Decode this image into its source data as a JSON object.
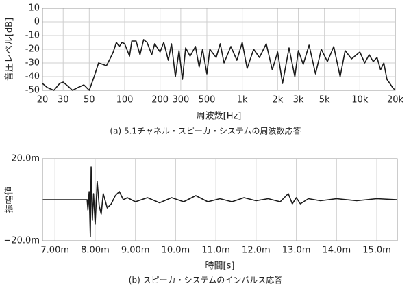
{
  "chart_data": [
    {
      "type": "line",
      "ylabel": "音圧レベル[dB]",
      "xlabel": "周波数[Hz]",
      "caption": "(a) 5.1チャネル・スピーカ・システムの周波数応答",
      "xscale": "log",
      "grid": true,
      "color": "#1a1a1a",
      "xlim": [
        20,
        20000
      ],
      "ylim": [
        -50,
        10
      ],
      "xticks": [
        20,
        30,
        50,
        100,
        200,
        300,
        500,
        {
          "value": 1000,
          "label": "1k"
        },
        {
          "value": 2000,
          "label": "2k"
        },
        {
          "value": 3000,
          "label": "3k"
        },
        {
          "value": 5000,
          "label": "5k"
        },
        {
          "value": 10000,
          "label": "10k"
        },
        {
          "value": 20000,
          "label": "20k"
        }
      ],
      "yticks": [
        10,
        0,
        -10,
        -20,
        -30,
        -40,
        -50
      ],
      "x": [
        20,
        22,
        25,
        28,
        30,
        33,
        36,
        40,
        45,
        50,
        55,
        60,
        65,
        70,
        75,
        80,
        85,
        90,
        95,
        100,
        110,
        115,
        125,
        135,
        145,
        155,
        170,
        180,
        200,
        215,
        235,
        250,
        270,
        290,
        310,
        330,
        360,
        400,
        430,
        460,
        500,
        530,
        600,
        650,
        700,
        800,
        900,
        1000,
        1100,
        1250,
        1400,
        1600,
        1800,
        2000,
        2200,
        2500,
        2800,
        3000,
        3300,
        3700,
        4200,
        4700,
        5300,
        6000,
        6800,
        7500,
        8500,
        10000,
        11000,
        12000,
        13000,
        14000,
        15000,
        16000,
        17000,
        18000,
        19000,
        20000
      ],
      "values": [
        -45,
        -48,
        -50,
        -45,
        -44,
        -47,
        -50,
        -48,
        -46,
        -50,
        -40,
        -30,
        -31,
        -32,
        -27,
        -22,
        -15,
        -18,
        -15,
        -16,
        -25,
        -14,
        -14,
        -24,
        -13,
        -15,
        -24,
        -16,
        -22,
        -15,
        -28,
        -16,
        -40,
        -21,
        -42,
        -19,
        -25,
        -18,
        -33,
        -20,
        -38,
        -20,
        -26,
        -16,
        -30,
        -18,
        -28,
        -15,
        -34,
        -20,
        -26,
        -16,
        -35,
        -22,
        -45,
        -19,
        -40,
        -21,
        -31,
        -17,
        -38,
        -20,
        -29,
        -18,
        -40,
        -21,
        -27,
        -22,
        -30,
        -24,
        -29,
        -26,
        -35,
        -30,
        -42,
        -45,
        -48,
        -50
      ]
    },
    {
      "type": "line",
      "ylabel": "振幅値",
      "xlabel": "時間[s]",
      "caption": "(b) スピーカ・システムのインパルス応答",
      "grid": true,
      "color": "#1a1a1a",
      "xlim": [
        0.00669,
        0.01551
      ],
      "ylim": [
        -0.02,
        0.02
      ],
      "xticks": [
        {
          "value": 0.007,
          "label": "7.00m"
        },
        {
          "value": 0.008,
          "label": "8.00m"
        },
        {
          "value": 0.009,
          "label": "9.00m"
        },
        {
          "value": 0.01,
          "label": "10.0m"
        },
        {
          "value": 0.011,
          "label": "11.0m"
        },
        {
          "value": 0.012,
          "label": "12.0m"
        },
        {
          "value": 0.013,
          "label": "13.0m"
        },
        {
          "value": 0.014,
          "label": "14.0m"
        },
        {
          "value": 0.015,
          "label": "15.0m"
        }
      ],
      "yticks": [
        {
          "value": 0.02,
          "label": "20.0m"
        },
        {
          "value": -0.02,
          "label": "−20.0m"
        }
      ],
      "x": [
        0.0067,
        0.0075,
        0.0078,
        0.00782,
        0.00785,
        0.00788,
        0.0079,
        0.00793,
        0.00796,
        0.008,
        0.00805,
        0.0081,
        0.00815,
        0.0082,
        0.0083,
        0.0084,
        0.0085,
        0.0086,
        0.0087,
        0.0088,
        0.009,
        0.0093,
        0.0096,
        0.0099,
        0.0102,
        0.0105,
        0.0108,
        0.0111,
        0.0114,
        0.0117,
        0.012,
        0.0123,
        0.0126,
        0.0128,
        0.0129,
        0.013,
        0.0131,
        0.0133,
        0.0136,
        0.014,
        0.0145,
        0.015,
        0.0155
      ],
      "values": [
        0,
        0,
        0,
        -0.005,
        0.004,
        -0.018,
        0.016,
        -0.01,
        0.003,
        -0.012,
        0.009,
        -0.003,
        -0.007,
        0.003,
        -0.004,
        -0.002,
        0.002,
        0.004,
        0,
        0.001,
        -0.001,
        0.001,
        -0.0015,
        0.001,
        -0.001,
        0.002,
        -0.001,
        0.0005,
        -0.001,
        0.001,
        -0.0005,
        0.0005,
        -0.001,
        0.003,
        -0.002,
        0.001,
        -0.002,
        0.0005,
        -0.0005,
        0.0005,
        -0.0005,
        0.0005,
        0
      ]
    }
  ]
}
